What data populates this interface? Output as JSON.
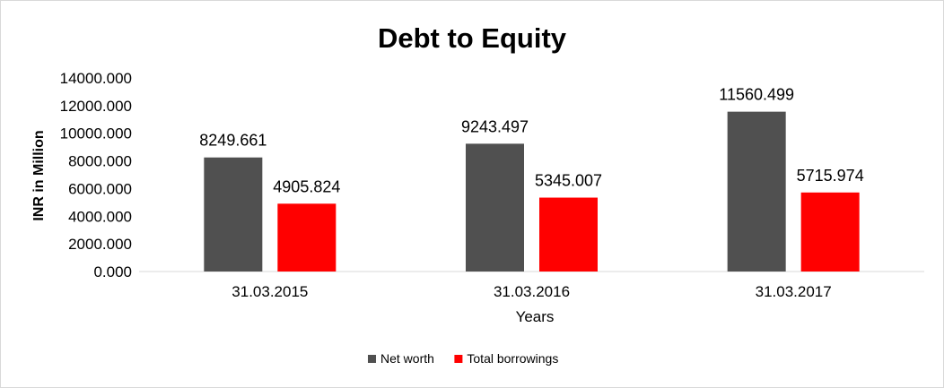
{
  "chart_data": {
    "type": "bar",
    "title": "Debt to Equity",
    "xlabel": "Years",
    "ylabel": "INR in Million",
    "categories": [
      "31.03.2015",
      "31.03.2016",
      "31.03.2017"
    ],
    "series": [
      {
        "name": "Net worth",
        "color": "#505050",
        "values": [
          8249.661,
          9243.497,
          11560.499
        ],
        "labels": [
          "8249.661",
          "9243.497",
          "11560.499"
        ]
      },
      {
        "name": "Total borrowings",
        "color": "#ff0000",
        "values": [
          4905.824,
          5345.007,
          5715.974
        ],
        "labels": [
          "4905.824",
          "5345.007",
          "5715.974"
        ]
      }
    ],
    "ylim": [
      0,
      14000
    ],
    "yticks": [
      "0.000",
      "2000.000",
      "4000.000",
      "6000.000",
      "8000.000",
      "10000.000",
      "12000.000",
      "14000.000"
    ],
    "grid": false,
    "legend_position": "bottom"
  }
}
